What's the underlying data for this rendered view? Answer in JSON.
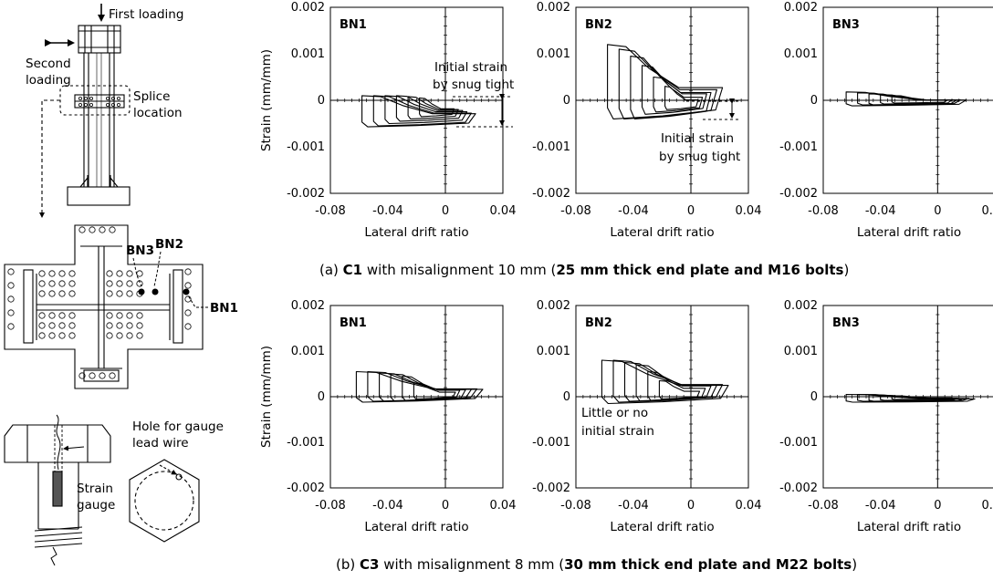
{
  "schematic": {
    "first_loading": "First loading",
    "second_loading_1": "Second",
    "second_loading_2": "loading",
    "splice_1": "Splice",
    "splice_2": "location",
    "bn1": "BN1",
    "bn2": "BN2",
    "bn3": "BN3",
    "hole_1": "Hole for gauge",
    "hole_2": "lead wire",
    "strain_1": "Strain",
    "strain_2": "gauge"
  },
  "axes": {
    "y_label": "Strain (mm/mm)",
    "x_label": "Lateral drift ratio",
    "y_ticks": [
      "0.002",
      "0.001",
      "0",
      "-0.001",
      "-0.002"
    ],
    "y_tick_values": [
      0.002,
      0.001,
      0,
      -0.001,
      -0.002
    ],
    "x_ticks": [
      "-0.08",
      "-0.04",
      "0",
      "0.04"
    ],
    "x_tick_values": [
      -0.08,
      -0.04,
      0,
      0.04
    ],
    "xlim": [
      -0.08,
      0.04
    ],
    "ylim": [
      -0.002,
      0.002
    ]
  },
  "captions": {
    "a_pre": "(a) ",
    "a_bold1": "C1",
    "a_mid": " with misalignment 10 mm (",
    "a_bold2": "25 mm thick end plate and M16 bolts",
    "a_post": ")",
    "b_pre": "(b) ",
    "b_bold1": "C3",
    "b_mid": " with misalignment 8 mm (",
    "b_bold2": "30 mm thick end plate and M22 bolts",
    "b_post": ")"
  },
  "annotations": {
    "a1_1": "Initial strain",
    "a1_2": "by snug tight",
    "a2_1": "Initial strain",
    "a2_2": "by snug tight",
    "b2_1": "Little or no",
    "b2_2": "initial strain"
  },
  "chart_data": [
    {
      "type": "line",
      "title": "BN1",
      "row": "(a)",
      "xlabel": "Lateral drift ratio",
      "ylabel": "Strain (mm/mm)",
      "xlim": [
        -0.08,
        0.04
      ],
      "ylim": [
        -0.002,
        0.002
      ],
      "cycles": [
        {
          "x_min": -0.058,
          "x_max": 0.021,
          "y_min": -0.00057,
          "y_max": 0.0001
        },
        {
          "x_min": -0.05,
          "x_max": 0.018,
          "y_min": -0.00055,
          "y_max": 0.0001
        },
        {
          "x_min": -0.042,
          "x_max": 0.015,
          "y_min": -0.0005,
          "y_max": 0.0001
        },
        {
          "x_min": -0.034,
          "x_max": 0.012,
          "y_min": -0.00045,
          "y_max": 0.0001
        },
        {
          "x_min": -0.026,
          "x_max": 0.009,
          "y_min": -0.0004,
          "y_max": 8e-05
        },
        {
          "x_min": -0.018,
          "x_max": 0.006,
          "y_min": -0.00035,
          "y_max": 5e-05
        }
      ]
    },
    {
      "type": "line",
      "title": "BN2",
      "row": "(a)",
      "xlabel": "Lateral drift ratio",
      "ylabel": "",
      "xlim": [
        -0.08,
        0.04
      ],
      "ylim": [
        -0.002,
        0.002
      ],
      "cycles": [
        {
          "x_min": -0.058,
          "x_max": 0.022,
          "y_min": -0.0004,
          "y_max": 0.0012
        },
        {
          "x_min": -0.05,
          "x_max": 0.018,
          "y_min": -0.0004,
          "y_max": 0.0011
        },
        {
          "x_min": -0.042,
          "x_max": 0.014,
          "y_min": -0.0004,
          "y_max": 0.00095
        },
        {
          "x_min": -0.034,
          "x_max": 0.011,
          "y_min": -0.0003,
          "y_max": 0.00075
        },
        {
          "x_min": -0.026,
          "x_max": 0.008,
          "y_min": -0.00025,
          "y_max": 0.0005
        },
        {
          "x_min": -0.018,
          "x_max": 0.005,
          "y_min": -0.0002,
          "y_max": 0.0003
        }
      ]
    },
    {
      "type": "line",
      "title": "BN3",
      "row": "(a)",
      "xlabel": "Lateral drift ratio",
      "ylabel": "",
      "xlim": [
        -0.08,
        0.04
      ],
      "ylim": [
        -0.002,
        0.002
      ],
      "cycles": [
        {
          "x_min": -0.064,
          "x_max": 0.02,
          "y_min": -0.00012,
          "y_max": 0.00018
        },
        {
          "x_min": -0.056,
          "x_max": 0.016,
          "y_min": -0.0001,
          "y_max": 0.00016
        },
        {
          "x_min": -0.048,
          "x_max": 0.013,
          "y_min": -0.0001,
          "y_max": 0.00014
        },
        {
          "x_min": -0.04,
          "x_max": 0.01,
          "y_min": -8e-05,
          "y_max": 0.00012
        },
        {
          "x_min": -0.032,
          "x_max": 0.007,
          "y_min": -6e-05,
          "y_max": 0.0001
        }
      ]
    },
    {
      "type": "line",
      "title": "BN1",
      "row": "(b)",
      "xlabel": "Lateral drift ratio",
      "ylabel": "Strain (mm/mm)",
      "xlim": [
        -0.08,
        0.04
      ],
      "ylim": [
        -0.002,
        0.002
      ],
      "cycles": [
        {
          "x_min": -0.062,
          "x_max": 0.026,
          "y_min": -0.00012,
          "y_max": 0.00055
        },
        {
          "x_min": -0.054,
          "x_max": 0.022,
          "y_min": -0.0001,
          "y_max": 0.00055
        },
        {
          "x_min": -0.046,
          "x_max": 0.018,
          "y_min": -0.0001,
          "y_max": 0.00052
        },
        {
          "x_min": -0.038,
          "x_max": 0.014,
          "y_min": -0.0001,
          "y_max": 0.0005
        },
        {
          "x_min": -0.03,
          "x_max": 0.01,
          "y_min": -8e-05,
          "y_max": 0.00045
        },
        {
          "x_min": -0.022,
          "x_max": 0.007,
          "y_min": -5e-05,
          "y_max": 0.0003
        }
      ]
    },
    {
      "type": "line",
      "title": "BN2",
      "row": "(b)",
      "xlabel": "Lateral drift ratio",
      "ylabel": "",
      "xlim": [
        -0.08,
        0.04
      ],
      "ylim": [
        -0.002,
        0.002
      ],
      "cycles": [
        {
          "x_min": -0.062,
          "x_max": 0.026,
          "y_min": -0.00015,
          "y_max": 0.0008
        },
        {
          "x_min": -0.054,
          "x_max": 0.022,
          "y_min": -0.00012,
          "y_max": 0.0008
        },
        {
          "x_min": -0.046,
          "x_max": 0.018,
          "y_min": -0.0001,
          "y_max": 0.00075
        },
        {
          "x_min": -0.038,
          "x_max": 0.014,
          "y_min": -0.0001,
          "y_max": 0.0007
        },
        {
          "x_min": -0.03,
          "x_max": 0.01,
          "y_min": -8e-05,
          "y_max": 0.00055
        },
        {
          "x_min": -0.022,
          "x_max": 0.006,
          "y_min": -5e-05,
          "y_max": 0.00035
        }
      ]
    },
    {
      "type": "line",
      "title": "BN3",
      "row": "(b)",
      "xlabel": "Lateral drift ratio",
      "ylabel": "",
      "xlim": [
        -0.08,
        0.04
      ],
      "ylim": [
        -0.002,
        0.002
      ],
      "cycles": [
        {
          "x_min": -0.064,
          "x_max": 0.026,
          "y_min": -0.00012,
          "y_max": 5e-05
        },
        {
          "x_min": -0.056,
          "x_max": 0.022,
          "y_min": -0.0001,
          "y_max": 5e-05
        },
        {
          "x_min": -0.048,
          "x_max": 0.018,
          "y_min": -0.0001,
          "y_max": 4e-05
        },
        {
          "x_min": -0.04,
          "x_max": 0.014,
          "y_min": -8e-05,
          "y_max": 3e-05
        },
        {
          "x_min": -0.032,
          "x_max": 0.01,
          "y_min": -6e-05,
          "y_max": 2e-05
        }
      ]
    }
  ]
}
